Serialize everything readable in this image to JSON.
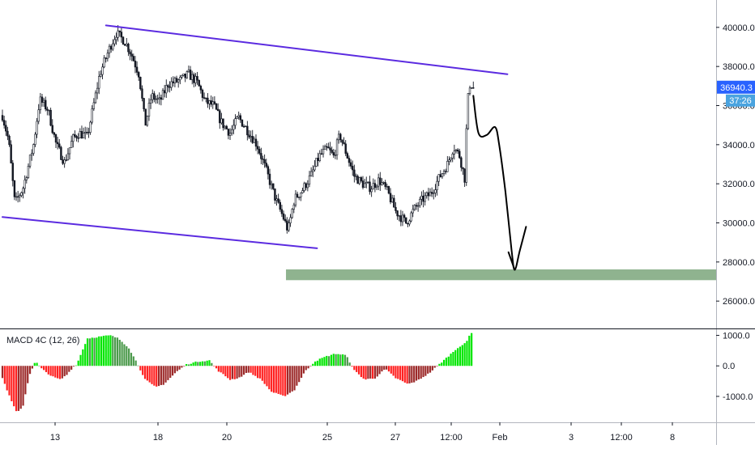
{
  "chart_data": [
    {
      "type": "candlestick",
      "panel": "price",
      "y_ticks": [
        "40000.0",
        "38000.0",
        "36000.0",
        "34000.0",
        "32000.0",
        "30000.0",
        "28000.0",
        "26000.0"
      ],
      "ylim": [
        24600,
        41400
      ],
      "last_price": "36940.3",
      "countdown": "37:26",
      "x_ticks": [
        "13",
        "18",
        "20",
        "25",
        "27",
        "12:00",
        "Feb",
        "3",
        "12:00",
        "8"
      ],
      "candle_path": [
        {
          "t": 0.0,
          "p": 35500
        },
        {
          "t": 0.3,
          "p": 34200
        },
        {
          "t": 0.6,
          "p": 31000
        },
        {
          "t": 1.0,
          "p": 31800
        },
        {
          "t": 1.5,
          "p": 34000
        },
        {
          "t": 1.8,
          "p": 36300
        },
        {
          "t": 2.2,
          "p": 35800
        },
        {
          "t": 2.6,
          "p": 34000
        },
        {
          "t": 3.0,
          "p": 33100
        },
        {
          "t": 3.4,
          "p": 34300
        },
        {
          "t": 3.7,
          "p": 34600
        },
        {
          "t": 4.1,
          "p": 34400
        },
        {
          "t": 4.7,
          "p": 37600
        },
        {
          "t": 5.2,
          "p": 39000
        },
        {
          "t": 5.5,
          "p": 39700
        },
        {
          "t": 5.9,
          "p": 39300
        },
        {
          "t": 6.2,
          "p": 38700
        },
        {
          "t": 6.6,
          "p": 37600
        },
        {
          "t": 6.9,
          "p": 35000
        },
        {
          "t": 7.2,
          "p": 36500
        },
        {
          "t": 7.6,
          "p": 36200
        },
        {
          "t": 8.0,
          "p": 37100
        },
        {
          "t": 8.6,
          "p": 37300
        },
        {
          "t": 9.0,
          "p": 37600
        },
        {
          "t": 9.4,
          "p": 37200
        },
        {
          "t": 9.8,
          "p": 36200
        },
        {
          "t": 10.2,
          "p": 36000
        },
        {
          "t": 10.6,
          "p": 35100
        },
        {
          "t": 11.0,
          "p": 34600
        },
        {
          "t": 11.4,
          "p": 35400
        },
        {
          "t": 11.8,
          "p": 34800
        },
        {
          "t": 12.3,
          "p": 34000
        },
        {
          "t": 12.8,
          "p": 32500
        },
        {
          "t": 13.2,
          "p": 31200
        },
        {
          "t": 13.6,
          "p": 30200
        },
        {
          "t": 13.8,
          "p": 29600
        },
        {
          "t": 14.1,
          "p": 31200
        },
        {
          "t": 14.5,
          "p": 31700
        },
        {
          "t": 14.9,
          "p": 32400
        },
        {
          "t": 15.3,
          "p": 33400
        },
        {
          "t": 15.7,
          "p": 33800
        },
        {
          "t": 16.0,
          "p": 33400
        },
        {
          "t": 16.3,
          "p": 34500
        },
        {
          "t": 16.6,
          "p": 33600
        },
        {
          "t": 17.0,
          "p": 32400
        },
        {
          "t": 17.4,
          "p": 32000
        },
        {
          "t": 17.8,
          "p": 31800
        },
        {
          "t": 18.2,
          "p": 32200
        },
        {
          "t": 18.6,
          "p": 31600
        },
        {
          "t": 19.0,
          "p": 30600
        },
        {
          "t": 19.5,
          "p": 30000
        },
        {
          "t": 19.9,
          "p": 30700
        },
        {
          "t": 20.3,
          "p": 31200
        },
        {
          "t": 20.7,
          "p": 31500
        },
        {
          "t": 21.1,
          "p": 32300
        },
        {
          "t": 21.5,
          "p": 33000
        },
        {
          "t": 21.8,
          "p": 33900
        },
        {
          "t": 22.1,
          "p": 33400
        },
        {
          "t": 22.35,
          "p": 32200
        },
        {
          "t": 22.45,
          "p": 36000
        },
        {
          "t": 22.6,
          "p": 37200
        },
        {
          "t": 22.75,
          "p": 36900
        }
      ],
      "annotations": {
        "channel_upper": [
          {
            "t": 5.0,
            "p": 40100
          },
          {
            "t": 24.4,
            "p": 37600
          }
        ],
        "channel_lower": [
          {
            "t": 0.0,
            "p": 30300
          },
          {
            "t": 15.2,
            "p": 28700
          }
        ],
        "projection": [
          {
            "t": 22.75,
            "p": 36500
          },
          {
            "t": 23.0,
            "p": 34600
          },
          {
            "t": 23.4,
            "p": 34500
          },
          {
            "t": 23.8,
            "p": 34900
          },
          {
            "t": 24.0,
            "p": 34000
          },
          {
            "t": 24.3,
            "p": 31600
          },
          {
            "t": 24.6,
            "p": 28600
          },
          {
            "t": 24.75,
            "p": 27600
          },
          {
            "t": 25.0,
            "p": 28600
          },
          {
            "t": 25.3,
            "p": 29800
          }
        ],
        "projection_hook": [
          {
            "t": 24.45,
            "p": 28500
          },
          {
            "t": 24.75,
            "p": 27600
          }
        ],
        "support_zone": {
          "t_start": 13.7,
          "t_end": 34.0,
          "p_low": 27070,
          "p_high": 27620
        }
      },
      "colors": {
        "bg": "#ffffff",
        "candle": "#131722",
        "channel": "#5b2be0",
        "projection": "#000000",
        "support_zone": "#8fb38f",
        "price_label_bg": "#2962ff",
        "countdown_bg": "#4aa3df",
        "axis_text": "#131722",
        "grid": "#e6e6e6"
      }
    },
    {
      "type": "histogram",
      "panel": "indicator",
      "title": "MACD 4C (12, 26)",
      "y_ticks": [
        "1000.0",
        "0.0",
        "-1000.0"
      ],
      "ylim": [
        -1850,
        1200
      ],
      "macd_path": [
        {
          "t": 0.0,
          "v": -400
        },
        {
          "t": 0.4,
          "v": -1100
        },
        {
          "t": 0.7,
          "v": -1550
        },
        {
          "t": 1.0,
          "v": -1300
        },
        {
          "t": 1.3,
          "v": -300
        },
        {
          "t": 1.6,
          "v": 150
        },
        {
          "t": 1.9,
          "v": -100
        },
        {
          "t": 2.4,
          "v": -350
        },
        {
          "t": 2.8,
          "v": -450
        },
        {
          "t": 3.1,
          "v": -300
        },
        {
          "t": 3.4,
          "v": -50
        },
        {
          "t": 3.6,
          "v": 60
        },
        {
          "t": 4.1,
          "v": 900
        },
        {
          "t": 4.6,
          "v": 950
        },
        {
          "t": 5.2,
          "v": 1000
        },
        {
          "t": 5.6,
          "v": 900
        },
        {
          "t": 6.1,
          "v": 600
        },
        {
          "t": 6.5,
          "v": 100
        },
        {
          "t": 6.9,
          "v": -450
        },
        {
          "t": 7.4,
          "v": -700
        },
        {
          "t": 7.8,
          "v": -600
        },
        {
          "t": 8.4,
          "v": -200
        },
        {
          "t": 8.9,
          "v": 50
        },
        {
          "t": 9.5,
          "v": 150
        },
        {
          "t": 10.0,
          "v": 180
        },
        {
          "t": 10.4,
          "v": -150
        },
        {
          "t": 11.0,
          "v": -450
        },
        {
          "t": 11.4,
          "v": -400
        },
        {
          "t": 11.9,
          "v": -200
        },
        {
          "t": 12.5,
          "v": -450
        },
        {
          "t": 13.0,
          "v": -850
        },
        {
          "t": 13.6,
          "v": -1000
        },
        {
          "t": 14.1,
          "v": -800
        },
        {
          "t": 14.6,
          "v": -200
        },
        {
          "t": 15.1,
          "v": 150
        },
        {
          "t": 15.6,
          "v": 300
        },
        {
          "t": 16.1,
          "v": 400
        },
        {
          "t": 16.6,
          "v": 350
        },
        {
          "t": 17.0,
          "v": -150
        },
        {
          "t": 17.5,
          "v": -450
        },
        {
          "t": 18.0,
          "v": -400
        },
        {
          "t": 18.5,
          "v": -100
        },
        {
          "t": 19.0,
          "v": -400
        },
        {
          "t": 19.6,
          "v": -600
        },
        {
          "t": 20.0,
          "v": -500
        },
        {
          "t": 20.6,
          "v": -250
        },
        {
          "t": 21.1,
          "v": 50
        },
        {
          "t": 21.6,
          "v": 350
        },
        {
          "t": 22.0,
          "v": 600
        },
        {
          "t": 22.4,
          "v": 750
        },
        {
          "t": 22.6,
          "v": 1050
        },
        {
          "t": 22.75,
          "v": 1150
        }
      ],
      "colors": {
        "pos_strong": "#00e600",
        "pos_weak": "#4c9a4c",
        "neg_strong": "#ff2020",
        "neg_weak": "#9c2a2a"
      }
    }
  ]
}
